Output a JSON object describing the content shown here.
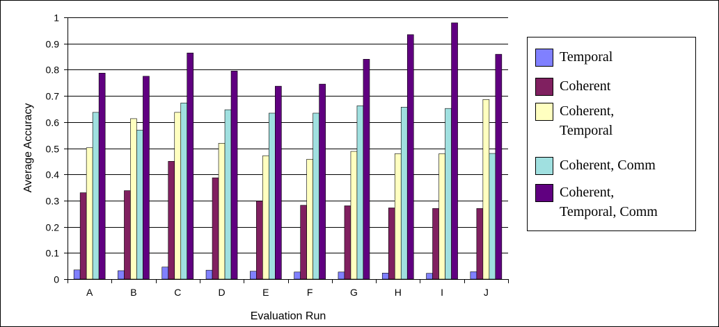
{
  "chart_data": {
    "type": "bar",
    "categories": [
      "A",
      "B",
      "C",
      "D",
      "E",
      "F",
      "G",
      "H",
      "I",
      "J"
    ],
    "series": [
      {
        "name": "Temporal",
        "color": "#8080ff",
        "values": [
          0.035,
          0.032,
          0.046,
          0.034,
          0.03,
          0.027,
          0.027,
          0.023,
          0.022,
          0.028
        ]
      },
      {
        "name": "Coherent",
        "color": "#802060",
        "values": [
          0.33,
          0.338,
          0.45,
          0.387,
          0.298,
          0.282,
          0.28,
          0.272,
          0.27,
          0.27
        ]
      },
      {
        "name": "Coherent,\nTemporal",
        "color": "#ffffc0",
        "values": [
          0.502,
          0.613,
          0.637,
          0.519,
          0.471,
          0.458,
          0.488,
          0.479,
          0.479,
          0.686
        ]
      },
      {
        "name": "Coherent, Comm",
        "color": "#a0e0e0",
        "values": [
          0.637,
          0.569,
          0.673,
          0.647,
          0.634,
          0.634,
          0.662,
          0.657,
          0.652,
          0.48
        ]
      },
      {
        "name": "Coherent,\nTemporal, Comm",
        "color": "#600080",
        "values": [
          0.787,
          0.775,
          0.864,
          0.795,
          0.737,
          0.745,
          0.84,
          0.934,
          0.979,
          0.859
        ]
      }
    ],
    "xlabel": "Evaluation Run",
    "ylabel": "Average Accuracy",
    "ylim": [
      0,
      1
    ],
    "yticks": [
      "0",
      "0.1",
      "0.2",
      "0.3",
      "0.4",
      "0.5",
      "0.6",
      "0.7",
      "0.8",
      "0.9",
      "1"
    ],
    "grid": true,
    "legend_position": "right"
  }
}
